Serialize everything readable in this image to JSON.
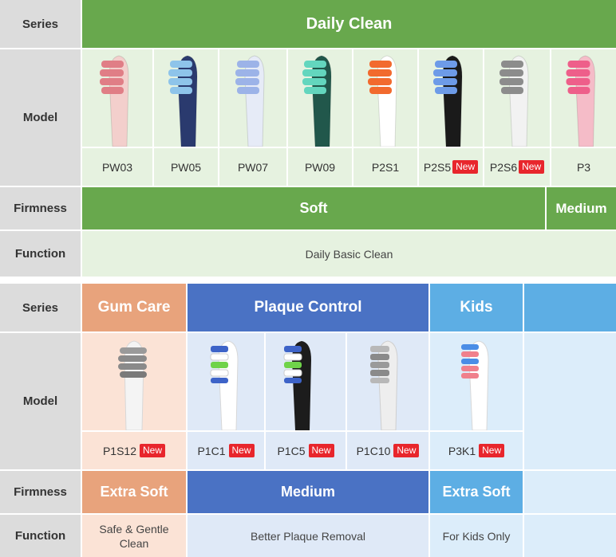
{
  "top_table": {
    "series_label": "Series",
    "model_label": "Model",
    "firmness_label": "Firmness",
    "function_label": "Function",
    "series_name": "Daily Clean",
    "models": [
      {
        "name": "PW03",
        "new": false,
        "handle_color": "#f3cfcc",
        "bristle_color": "#e07e86"
      },
      {
        "name": "PW05",
        "new": false,
        "handle_color": "#2a3a6e",
        "bristle_color": "#8ec4ea"
      },
      {
        "name": "PW07",
        "new": false,
        "handle_color": "#e6ebf7",
        "bristle_color": "#9cb3e8"
      },
      {
        "name": "PW09",
        "new": false,
        "handle_color": "#21574b",
        "bristle_color": "#63d6be"
      },
      {
        "name": "P2S1",
        "new": false,
        "handle_color": "#ffffff",
        "bristle_color": "#f26a2e"
      },
      {
        "name": "P2S5",
        "new": true,
        "handle_color": "#1a1a1a",
        "bristle_color": "#6d9be8"
      },
      {
        "name": "P2S6",
        "new": true,
        "handle_color": "#f2f2f2",
        "bristle_color": "#8c8c8c"
      },
      {
        "name": "P3",
        "new": false,
        "handle_color": "#f5bcc8",
        "bristle_color": "#ee5f8a"
      }
    ],
    "new_badge": "New",
    "firmness_soft": "Soft",
    "firmness_medium": "Medium",
    "function_text": "Daily Basic Clean"
  },
  "bottom_table": {
    "series_label": "Series",
    "model_label": "Model",
    "firmness_label": "Firmness",
    "function_label": "Function",
    "series": {
      "gum_care": "Gum Care",
      "plaque_control": "Plaque Control",
      "kids": "Kids"
    },
    "models": [
      {
        "name": "P1S12",
        "new": true
      },
      {
        "name": "P1C1",
        "new": true
      },
      {
        "name": "P1C5",
        "new": true
      },
      {
        "name": "P1C10",
        "new": true
      },
      {
        "name": "P3K1",
        "new": true
      }
    ],
    "new_badge": "New",
    "firmness": {
      "gum_care": "Extra Soft",
      "plaque_control": "Medium",
      "kids": "Extra Soft"
    },
    "function": {
      "gum_care": "Safe & Gentle Clean",
      "plaque_control": "Better Plaque Removal",
      "kids": "For Kids Only"
    }
  },
  "colors": {
    "green": "#68a84d",
    "orange": "#e8a37c",
    "blue": "#4a72c4",
    "sky": "#5daee4",
    "new_red": "#e8262c"
  }
}
